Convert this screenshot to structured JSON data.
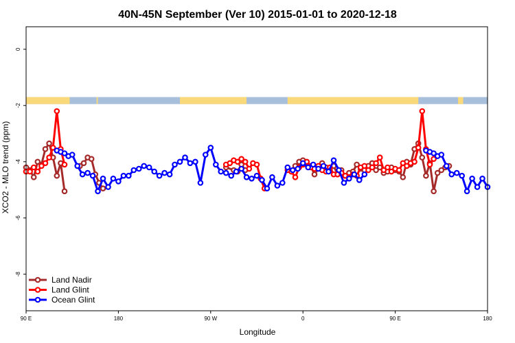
{
  "chart_data": {
    "type": "line",
    "title": "40N-45N September (Ver 10)   2015-01-01 to 2020-12-18",
    "xlabel": "Longitude",
    "ylabel": "XCO2 - MLO trend (ppm)",
    "xlim": [
      90,
      450
    ],
    "ylim": [
      -9.3,
      0.8
    ],
    "yticks": [
      0,
      -2,
      -4,
      -6,
      -8
    ],
    "ytick_labels": [
      "0",
      "-2",
      "-4",
      "-6",
      "-8"
    ],
    "xticks": [
      90,
      162,
      234,
      306,
      378,
      450
    ],
    "xtick_labels": [
      "90 E",
      "180",
      "90 W",
      "0",
      "90 E",
      "180"
    ],
    "legend_position": "bottom-left",
    "land_ocean_band": {
      "y_range": [
        -1.95,
        -1.7
      ],
      "ocean_color": "#a8bfdc",
      "land_color": "#fad97a",
      "land_segmentsx": [
        [
          90,
          124
        ],
        [
          145,
          146
        ],
        [
          210,
          262
        ],
        [
          294,
          396
        ],
        [
          427,
          431
        ]
      ]
    },
    "series": [
      {
        "name": "Land Nadir",
        "color": "#a52a2a",
        "x": [
          90,
          93,
          96,
          99,
          102,
          105,
          108,
          111,
          114,
          117,
          120,
          132,
          135,
          138,
          141,
          144,
          147,
          150,
          246,
          252,
          255,
          258,
          261,
          294,
          297,
          300,
          303,
          306,
          309,
          312,
          315,
          318,
          321,
          324,
          327,
          330,
          333,
          336,
          339,
          342,
          345,
          348,
          351,
          354,
          357,
          360,
          363,
          366,
          369,
          372,
          375,
          378,
          381,
          384,
          387,
          390,
          393,
          396,
          399,
          402,
          405,
          408,
          411,
          414,
          417,
          420
        ],
        "y": [
          -4.2,
          -4.3,
          -4.55,
          -4.0,
          -4.1,
          -3.55,
          -3.35,
          -3.85,
          -4.5,
          -4.05,
          -5.05,
          -4.15,
          -4.05,
          -3.85,
          -3.9,
          -4.45,
          -4.75,
          -4.95,
          -4.2,
          -4.3,
          -4.35,
          -4.1,
          -4.3,
          -4.2,
          -4.35,
          -4.15,
          -4.0,
          -3.95,
          -4.1,
          -4.15,
          -4.45,
          -4.25,
          -4.05,
          -4.2,
          -4.3,
          -4.15,
          -4.45,
          -4.3,
          -4.5,
          -4.4,
          -4.35,
          -4.1,
          -4.25,
          -4.3,
          -4.15,
          -4.05,
          -4.3,
          -4.2,
          -4.4,
          -4.35,
          -4.2,
          -4.3,
          -4.35,
          -4.55,
          -4.0,
          -4.1,
          -3.55,
          -3.35,
          -3.85,
          -4.5,
          -4.05,
          -5.05,
          -4.4,
          -4.3,
          -4.2,
          -4.15
        ]
      },
      {
        "name": "Land Glint",
        "color": "#ff0000",
        "x": [
          90,
          93,
          96,
          99,
          102,
          105,
          108,
          111,
          114,
          117,
          120,
          246,
          249,
          252,
          255,
          258,
          261,
          264,
          267,
          270,
          273,
          276,
          294,
          297,
          300,
          303,
          306,
          309,
          312,
          315,
          318,
          321,
          324,
          327,
          330,
          333,
          336,
          339,
          342,
          345,
          348,
          351,
          354,
          357,
          360,
          363,
          366,
          369,
          372,
          375,
          378,
          381,
          384,
          387,
          390,
          393,
          396,
          399,
          402,
          405,
          408
        ],
        "y": [
          -4.35,
          -4.35,
          -4.2,
          -4.35,
          -4.15,
          -4.05,
          -3.85,
          -3.5,
          -2.2,
          -3.55,
          -4.1,
          -4.1,
          -4.05,
          -3.95,
          -4.0,
          -3.9,
          -4.0,
          -4.25,
          -4.05,
          -4.1,
          -4.6,
          -4.95,
          -4.3,
          -4.35,
          -4.55,
          -4.2,
          -4.1,
          -4.0,
          -4.2,
          -4.25,
          -4.15,
          -4.3,
          -4.35,
          -4.2,
          -4.45,
          -4.45,
          -4.4,
          -4.5,
          -4.55,
          -4.45,
          -4.5,
          -4.2,
          -4.15,
          -4.3,
          -4.2,
          -4.05,
          -3.85,
          -4.3,
          -4.2,
          -4.35,
          -4.25,
          -4.3,
          -4.05,
          -4.15,
          -4.05,
          -4.0,
          -3.5,
          -2.2,
          -3.55,
          -4.1,
          -3.9
        ]
      },
      {
        "name": "Ocean Glint",
        "color": "#0000ff",
        "x": [
          114,
          117,
          120,
          123,
          126,
          130,
          134,
          138,
          142,
          146,
          150,
          154,
          158,
          162,
          166,
          170,
          174,
          178,
          182,
          186,
          190,
          194,
          198,
          202,
          206,
          210,
          214,
          218,
          222,
          226,
          230,
          234,
          238,
          242,
          246,
          250,
          254,
          258,
          262,
          266,
          270,
          274,
          278,
          282,
          286,
          290,
          294,
          298,
          302,
          306,
          310,
          314,
          318,
          322,
          326,
          330,
          334,
          338,
          342,
          346,
          350,
          354,
          402,
          405,
          408,
          411,
          414,
          418,
          422,
          426,
          430,
          434,
          438,
          442,
          446,
          450
        ],
        "y": [
          -3.6,
          -3.65,
          -3.7,
          -3.8,
          -3.75,
          -4.15,
          -4.45,
          -4.4,
          -4.5,
          -5.05,
          -4.6,
          -4.9,
          -4.6,
          -4.7,
          -4.5,
          -4.5,
          -4.3,
          -4.25,
          -4.15,
          -4.2,
          -4.35,
          -4.5,
          -4.4,
          -4.45,
          -4.1,
          -4.0,
          -3.85,
          -4.05,
          -4.0,
          -4.75,
          -3.75,
          -3.5,
          -4.1,
          -4.35,
          -4.4,
          -4.5,
          -4.35,
          -4.25,
          -4.55,
          -4.6,
          -4.5,
          -4.65,
          -4.95,
          -4.55,
          -4.85,
          -4.75,
          -4.2,
          -4.3,
          -4.25,
          -4.05,
          -4.2,
          -4.1,
          -4.25,
          -4.15,
          -4.35,
          -3.95,
          -4.3,
          -4.75,
          -4.6,
          -4.45,
          -4.65,
          -4.45,
          -3.6,
          -3.65,
          -3.7,
          -3.8,
          -3.75,
          -4.15,
          -4.45,
          -4.4,
          -4.5,
          -5.05,
          -4.6,
          -4.9,
          -4.6,
          -4.9
        ]
      }
    ]
  }
}
